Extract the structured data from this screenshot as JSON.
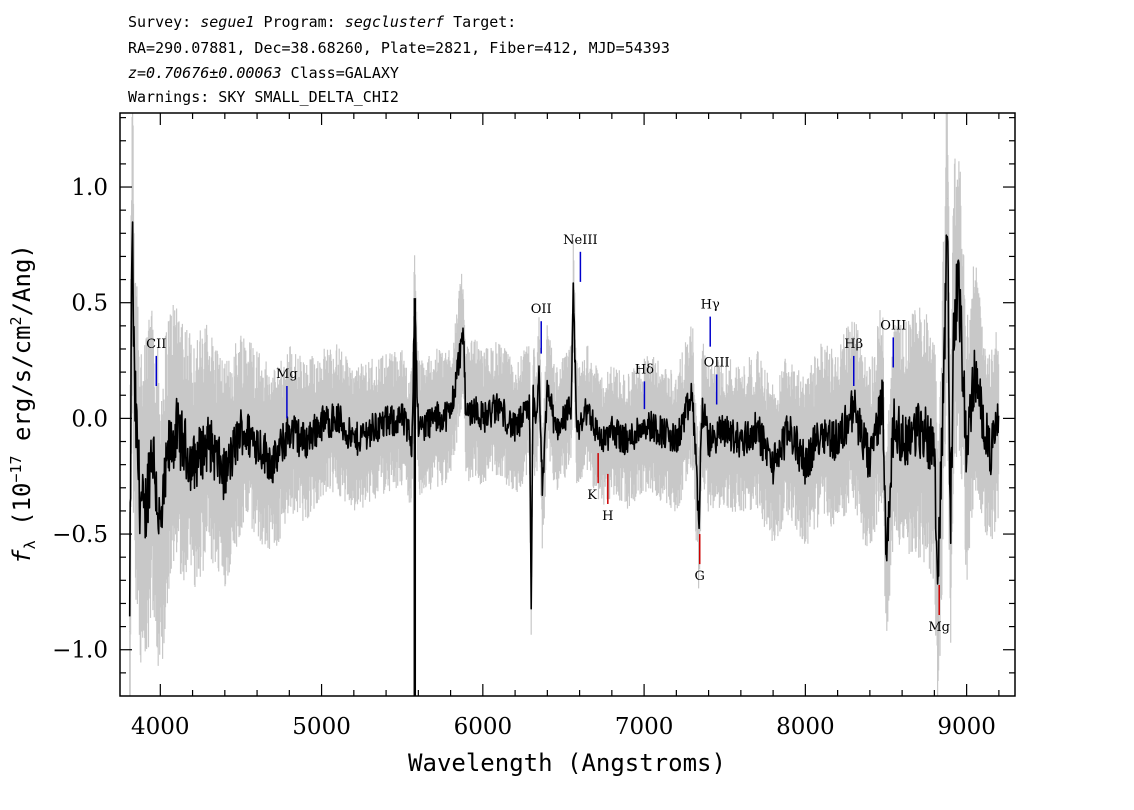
{
  "header": {
    "line1": {
      "survey_label": "Survey: ",
      "survey": "segue1",
      "program_label": " Program: ",
      "program": "segclusterf",
      "target_label": " Target:"
    },
    "line2": "RA=290.07881, Dec=38.68260, Plate=2821, Fiber=412, MJD=54393",
    "line3": {
      "redshift": "z=0.70676±0.00063",
      "class": " Class=GALAXY"
    },
    "line4": "Warnings: SKY SMALL_DELTA_CHI2"
  },
  "chart_data": {
    "type": "line",
    "xlabel": "Wavelength (Angstroms)",
    "ylabel": "f_λ (10^-17 erg/s/cm^2/Ang)",
    "xlim": [
      3750,
      9300
    ],
    "ylim": [
      -1.2,
      1.32
    ],
    "xticks": [
      4000,
      5000,
      6000,
      7000,
      8000,
      9000
    ],
    "xtick_labels": [
      "4000",
      "5000",
      "6000",
      "7000",
      "8000",
      "9000"
    ],
    "yticks": [
      1.0,
      0.5,
      0.0,
      -0.5,
      -1.0
    ],
    "ytick_labels": [
      "1.0",
      "0.5",
      "0.0",
      "−0.5",
      "−1.0"
    ],
    "colors": {
      "spectrum": "#000000",
      "error": "#c8c8c8",
      "emission": "#0000cc",
      "absorption": "#cc0000"
    },
    "series": [
      {
        "role": "spectrum",
        "x": [
          3810,
          3825,
          3840,
          3870,
          3900,
          3950,
          4000,
          4050,
          4100,
          4200,
          4300,
          4400,
          4500,
          4600,
          4700,
          4800,
          4900,
          5000,
          5100,
          5200,
          5300,
          5400,
          5500,
          5560,
          5578,
          5600,
          5700,
          5800,
          5880,
          5890,
          5900,
          5950,
          6000,
          6100,
          6200,
          6290,
          6300,
          6310,
          6330,
          6350,
          6370,
          6400,
          6450,
          6500,
          6550,
          6560,
          6580,
          6600,
          6650,
          6700,
          6750,
          6800,
          6900,
          7000,
          7100,
          7200,
          7300,
          7340,
          7360,
          7400,
          7500,
          7600,
          7700,
          7800,
          7900,
          8000,
          8100,
          8200,
          8300,
          8400,
          8480,
          8500,
          8550,
          8600,
          8700,
          8800,
          8820,
          8860,
          8880,
          8900,
          8920,
          8950,
          9000,
          9050,
          9100,
          9150,
          9200
        ],
        "y": [
          -0.92,
          0.85,
          0.1,
          -0.3,
          -0.45,
          -0.1,
          -0.5,
          -0.15,
          -0.05,
          -0.2,
          -0.1,
          -0.25,
          -0.05,
          -0.1,
          -0.2,
          -0.05,
          -0.1,
          -0.02,
          0.0,
          -0.1,
          -0.05,
          -0.02,
          0.0,
          -0.1,
          0.52,
          -0.05,
          0.0,
          0.02,
          0.38,
          0.1,
          0.02,
          0.05,
          0.0,
          0.05,
          -0.05,
          0.05,
          -0.8,
          0.1,
          -0.05,
          0.2,
          -0.35,
          0.15,
          -0.05,
          0.0,
          0.05,
          0.55,
          0.0,
          -0.05,
          0.05,
          -0.05,
          -0.1,
          -0.05,
          -0.1,
          -0.02,
          -0.05,
          -0.1,
          0.1,
          -0.45,
          0.05,
          -0.1,
          -0.05,
          -0.1,
          -0.05,
          -0.2,
          -0.05,
          -0.2,
          -0.05,
          -0.1,
          0.05,
          -0.2,
          0.1,
          -0.6,
          0.0,
          -0.1,
          -0.05,
          -0.1,
          -0.72,
          0.2,
          0.95,
          -0.5,
          0.4,
          0.6,
          -0.15,
          0.2,
          0.0,
          -0.15,
          0.0
        ]
      },
      {
        "role": "error",
        "x": [
          3800,
          3900,
          4100,
          4500,
          5000,
          5500,
          6000,
          6500,
          7000,
          7500,
          8000,
          8500,
          8800,
          8900,
          9000,
          9100,
          9200
        ],
        "y": [
          0.6,
          0.5,
          0.4,
          0.3,
          0.22,
          0.2,
          0.2,
          0.18,
          0.2,
          0.22,
          0.25,
          0.3,
          0.4,
          0.5,
          0.4,
          0.3,
          0.28
        ]
      }
    ],
    "line_markers": [
      {
        "label": "CII",
        "type": "emission",
        "x": 3975,
        "y_top": 0.27,
        "y_bottom": 0.14
      },
      {
        "label": "Mg",
        "type": "emission",
        "x": 4785,
        "y_top": 0.14,
        "y_bottom": 0.0
      },
      {
        "label": "OII",
        "type": "emission",
        "x": 6362,
        "y_top": 0.42,
        "y_bottom": 0.28
      },
      {
        "label": "NeIII",
        "type": "emission",
        "x": 6605,
        "y_top": 0.72,
        "y_bottom": 0.59
      },
      {
        "label": "Hδ",
        "type": "emission",
        "x": 7002,
        "y_top": 0.16,
        "y_bottom": 0.04
      },
      {
        "label": "Hγ",
        "type": "emission",
        "x": 7410,
        "y_top": 0.44,
        "y_bottom": 0.31
      },
      {
        "label": "OIII",
        "type": "emission",
        "x": 7450,
        "y_top": 0.19,
        "y_bottom": 0.06
      },
      {
        "label": "Hβ",
        "type": "emission",
        "x": 8300,
        "y_top": 0.27,
        "y_bottom": 0.14
      },
      {
        "label": "OIII",
        "type": "emission",
        "x": 8545,
        "y_top": 0.35,
        "y_bottom": 0.22
      },
      {
        "label": "K",
        "type": "absorption",
        "x": 6715,
        "y_top": -0.15,
        "y_bottom": -0.28
      },
      {
        "label": "H",
        "type": "absorption",
        "x": 6775,
        "y_top": -0.24,
        "y_bottom": -0.37
      },
      {
        "label": "G",
        "type": "absorption",
        "x": 7345,
        "y_top": -0.5,
        "y_bottom": -0.63
      },
      {
        "label": "Mg",
        "type": "absorption",
        "x": 8830,
        "y_top": -0.72,
        "y_bottom": -0.85
      }
    ]
  }
}
